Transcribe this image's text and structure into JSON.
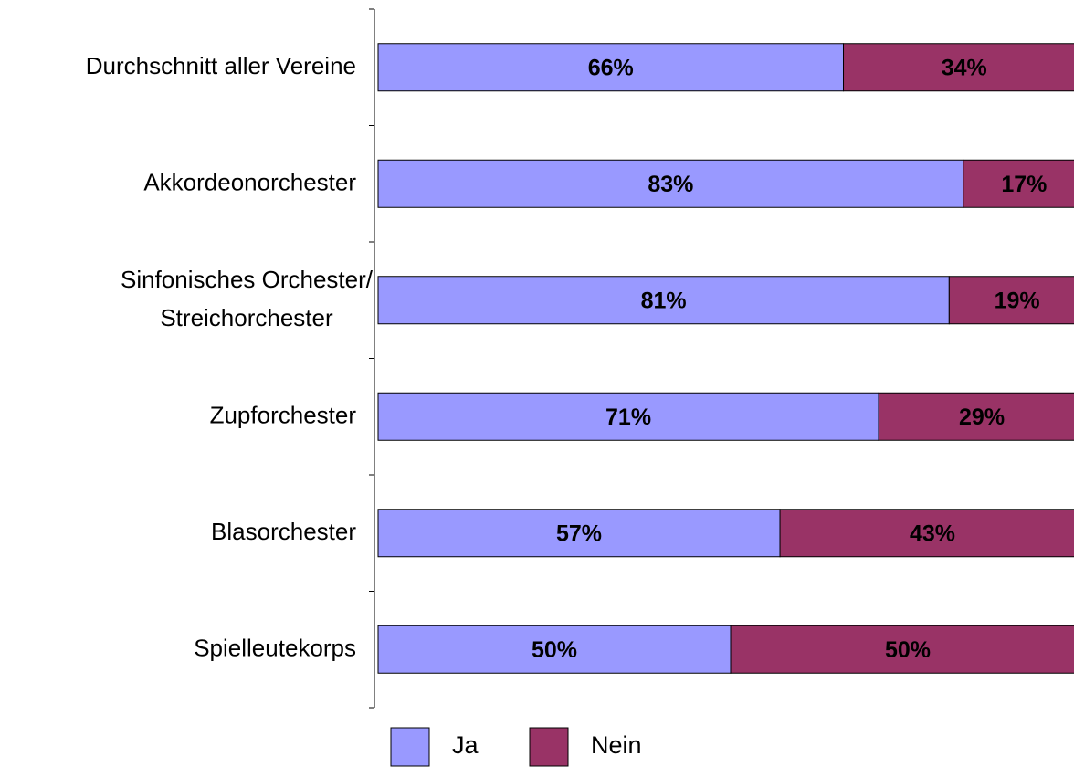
{
  "chart_data": {
    "type": "stacked_bar_horizontal",
    "categories": [
      "Durchschnitt aller Vereine",
      "Akkordeonorchester",
      "Sinfonisches Orchester/\nStreichorchester",
      "Zupforchester",
      "Blasorchester",
      "Spielleutekorps"
    ],
    "series": [
      {
        "name": "Ja",
        "color": "#9999ff",
        "values": [
          66,
          83,
          81,
          71,
          57,
          50
        ],
        "value_labels": [
          "66%",
          "83%",
          "81%",
          "71%",
          "57%",
          "50%"
        ]
      },
      {
        "name": "Nein",
        "color": "#993366",
        "values": [
          34,
          17,
          19,
          29,
          43,
          50
        ],
        "value_labels": [
          "34%",
          "17%",
          "19%",
          "29%",
          "43%",
          "50%"
        ]
      }
    ],
    "xlim": [
      0,
      100
    ],
    "legend": "bottom"
  }
}
